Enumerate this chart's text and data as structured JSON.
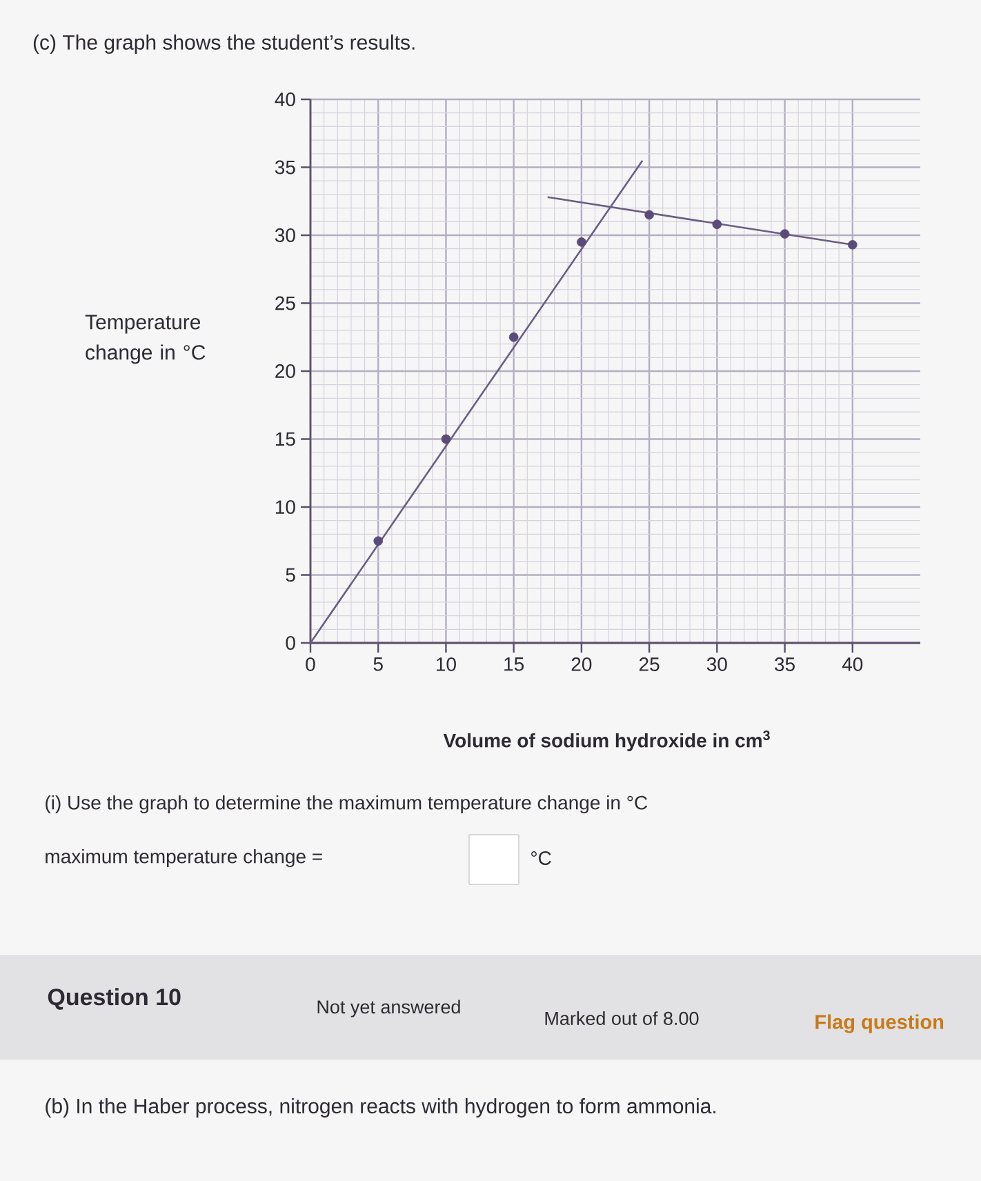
{
  "chart_data": {
    "type": "scatter",
    "title": "(c) The graph shows the student’s results.",
    "xlabel": "Volume of sodium hydroxide in cm$^{3}$",
    "ylabel": "Temperature change in °C",
    "xlim": [
      0,
      45
    ],
    "ylim": [
      0,
      40
    ],
    "xticks": [
      0,
      5,
      10,
      15,
      20,
      25,
      30,
      35,
      40
    ],
    "yticks": [
      0,
      5,
      10,
      15,
      20,
      25,
      30,
      35,
      40
    ],
    "grid": true,
    "marker": "circle",
    "series": [
      {
        "color": "#5b4b7a",
        "x": [
          5,
          10,
          15,
          20,
          25,
          30,
          35,
          40
        ],
        "values": [
          7.5,
          15,
          22.5,
          29.5,
          31.5,
          30.8,
          30.1,
          29.3
        ]
      },
      {
        "type": "line",
        "color": "#6a5d86",
        "marker": "none",
        "x": [
          0,
          24.5
        ],
        "values": [
          0,
          35.5
        ]
      },
      {
        "type": "line",
        "color": "#6a5d86",
        "marker": "none",
        "x": [
          17.5,
          40
        ],
        "values": [
          32.8,
          29.3
        ]
      }
    ],
    "annotations": [
      "(i) Use the graph to determine the maximum temperature change in °C",
      "maximum temperature change =",
      "°C",
      "Question 10",
      "Not yet answered",
      "Marked out of 8.00",
      "Flag question",
      "(b) In the Haber process, nitrogen reacts with hydrogen to form ammonia."
    ]
  }
}
